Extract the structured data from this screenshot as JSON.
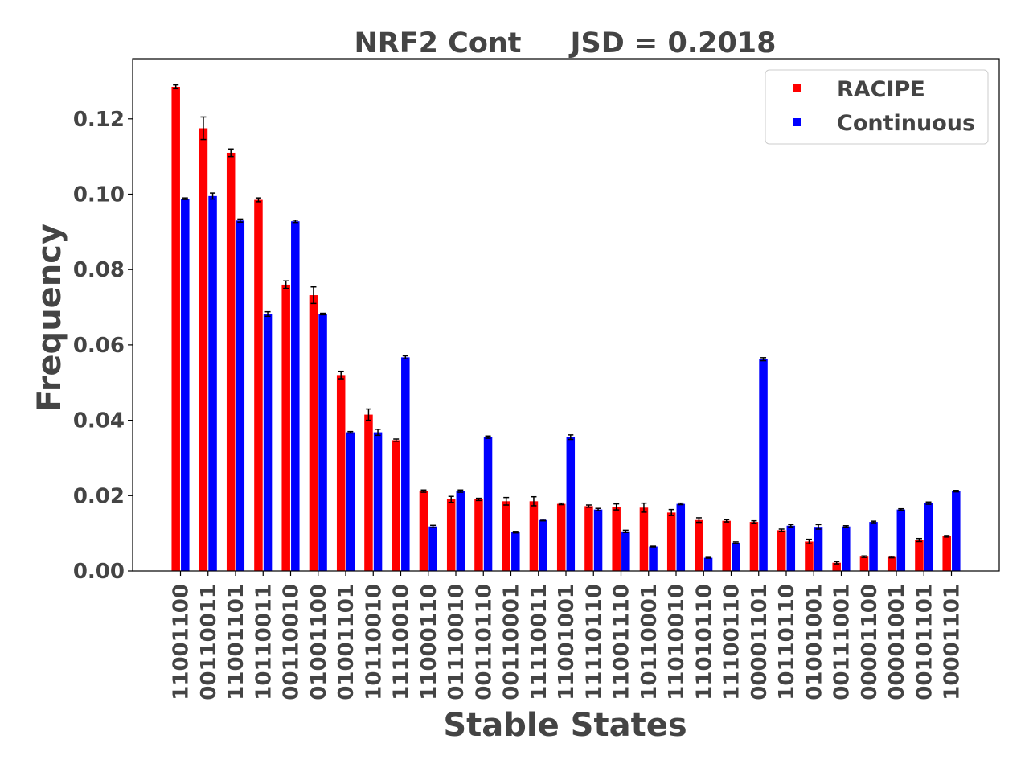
{
  "chart_data": {
    "type": "bar",
    "title": "NRF2 Cont     JSD = 0.2018",
    "xlabel": "Stable States",
    "ylabel": "Frequency",
    "ylim": [
      0,
      0.135
    ],
    "yticks": [
      "0.00",
      "0.02",
      "0.04",
      "0.06",
      "0.08",
      "0.10",
      "0.12"
    ],
    "legend_position": "top-right",
    "grid": false,
    "categories": [
      "11001100",
      "00110011",
      "11001101",
      "10110011",
      "00110010",
      "01001100",
      "01001101",
      "10110010",
      "11110010",
      "11000110",
      "01110010",
      "00110110",
      "00110001",
      "11110011",
      "11001001",
      "11110110",
      "11001110",
      "10110001",
      "11010010",
      "11010110",
      "11100110",
      "00001101",
      "10110110",
      "01001001",
      "00111001",
      "00001100",
      "00001001",
      "00101101",
      "10001101"
    ],
    "series": [
      {
        "name": "RACIPE",
        "color": "#ff0000",
        "values": [
          0.1285,
          0.1175,
          0.111,
          0.0985,
          0.076,
          0.0732,
          0.052,
          0.0415,
          0.0347,
          0.0212,
          0.019,
          0.019,
          0.0185,
          0.0185,
          0.0178,
          0.0172,
          0.017,
          0.0168,
          0.0155,
          0.0135,
          0.0133,
          0.013,
          0.0108,
          0.0078,
          0.0022,
          0.0038,
          0.0037,
          0.0082,
          0.0092
        ],
        "errors": [
          0.0005,
          0.003,
          0.001,
          0.0005,
          0.001,
          0.0022,
          0.001,
          0.0015,
          0.0003,
          0.0003,
          0.0008,
          0.0003,
          0.001,
          0.0012,
          0.0002,
          0.0003,
          0.0008,
          0.0012,
          0.0008,
          0.0006,
          0.0003,
          0.0003,
          0.0003,
          0.0006,
          0.0003,
          0.0002,
          0.0002,
          0.0004,
          0.0002
        ]
      },
      {
        "name": "Continuous",
        "color": "#0000ff",
        "values": [
          0.0988,
          0.0995,
          0.093,
          0.0682,
          0.0928,
          0.0682,
          0.0368,
          0.0368,
          0.0567,
          0.0118,
          0.0212,
          0.0355,
          0.0103,
          0.0135,
          0.0355,
          0.0163,
          0.0105,
          0.0065,
          0.0178,
          0.0035,
          0.0075,
          0.0562,
          0.012,
          0.0117,
          0.0118,
          0.013,
          0.0163,
          0.018,
          0.0212
        ],
        "errors": [
          0.0002,
          0.0008,
          0.0004,
          0.0006,
          0.0003,
          0.0002,
          0.0002,
          0.0008,
          0.0004,
          0.0003,
          0.0003,
          0.0003,
          0.0002,
          0.0002,
          0.0006,
          0.0003,
          0.0003,
          0.0001,
          0.0002,
          0.0001,
          0.0002,
          0.0004,
          0.0003,
          0.0006,
          0.0002,
          0.0002,
          0.0002,
          0.0003,
          0.0002
        ]
      }
    ]
  }
}
